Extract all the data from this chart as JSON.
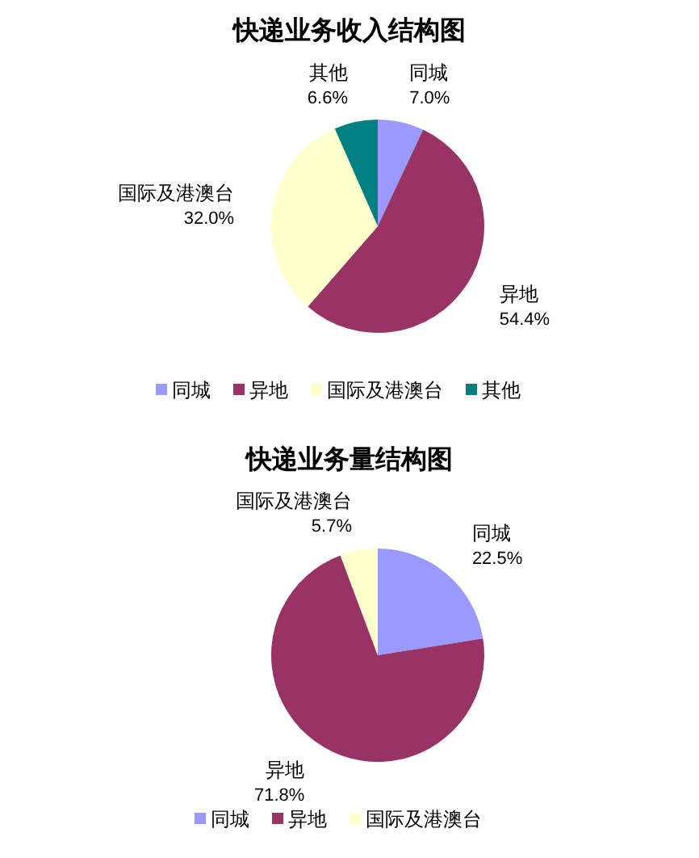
{
  "chart_data": [
    {
      "type": "pie",
      "title": "快递业务收入结构图",
      "categories": [
        "同城",
        "异地",
        "国际及港澳台",
        "其他"
      ],
      "values": [
        7.0,
        54.4,
        32.0,
        6.6
      ],
      "value_labels": [
        "7.0%",
        "54.4%",
        "32.0%",
        "6.6%"
      ],
      "colors": [
        "#9999ff",
        "#993366",
        "#ffffcc",
        "#008080"
      ],
      "legend": "bottom"
    },
    {
      "type": "pie",
      "title": "快递业务量结构图",
      "categories": [
        "同城",
        "异地",
        "国际及港澳台"
      ],
      "values": [
        22.5,
        71.8,
        5.7
      ],
      "value_labels": [
        "22.5%",
        "71.8%",
        "5.7%"
      ],
      "colors": [
        "#9999ff",
        "#993366",
        "#ffffcc"
      ],
      "legend": "bottom"
    }
  ]
}
